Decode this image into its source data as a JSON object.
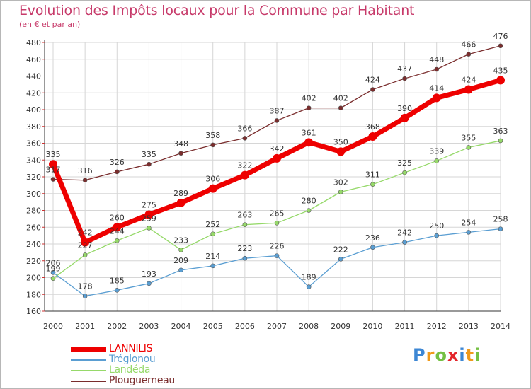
{
  "header": {
    "title": "Evolution des Impôts locaux pour la Commune par Habitant",
    "subtitle": "(en € et par an)"
  },
  "logo": {
    "text": "Proxiti"
  },
  "colors": {
    "title": "#c73a6a",
    "grid": "#d6d6d6",
    "LANNILIS": "#ee0000",
    "Tréglonou": "#5a9ed2",
    "Landéda": "#96d96a",
    "Plouguerneau": "#7a2d2d"
  },
  "chart_data": {
    "type": "line",
    "title": "Evolution des Impôts locaux pour la Commune par Habitant",
    "subtitle": "(en € et par an)",
    "xlabel": "",
    "ylabel": "",
    "ylim": [
      160,
      480
    ],
    "yticks": [
      160,
      180,
      200,
      220,
      240,
      260,
      280,
      300,
      320,
      340,
      360,
      380,
      400,
      420,
      440,
      460,
      480
    ],
    "grid": true,
    "legend_position": "bottom-left",
    "x": [
      "2000",
      "2001",
      "2002",
      "2003",
      "2004",
      "2005",
      "2006",
      "2007",
      "2008",
      "2009",
      "2010",
      "2011",
      "2012",
      "2013",
      "2014"
    ],
    "series": [
      {
        "name": "LANNILIS",
        "color": "#ee0000",
        "values": [
          335,
          242,
          260,
          275,
          289,
          306,
          322,
          342,
          361,
          350,
          368,
          390,
          414,
          424,
          435
        ]
      },
      {
        "name": "Tréglonou",
        "color": "#5a9ed2",
        "values": [
          206,
          178,
          185,
          193,
          209,
          214,
          223,
          226,
          189,
          222,
          236,
          242,
          250,
          254,
          258
        ]
      },
      {
        "name": "Landéda",
        "color": "#96d96a",
        "values": [
          199,
          227,
          244,
          259,
          233,
          252,
          263,
          265,
          280,
          302,
          311,
          325,
          339,
          355,
          363
        ]
      },
      {
        "name": "Plouguerneau",
        "color": "#7a2d2d",
        "values": [
          317,
          316,
          326,
          335,
          348,
          358,
          366,
          387,
          402,
          402,
          424,
          437,
          448,
          466,
          476
        ]
      }
    ]
  }
}
